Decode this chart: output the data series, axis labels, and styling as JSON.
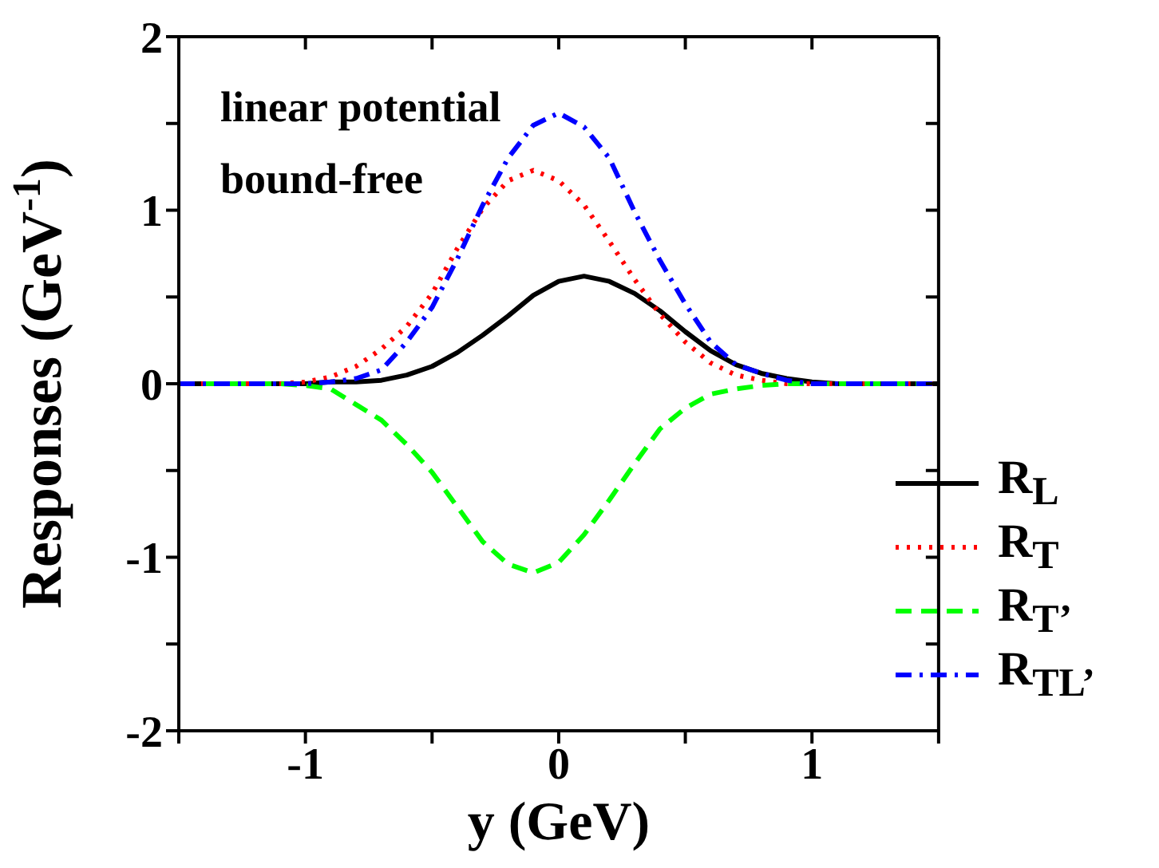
{
  "chart_data": {
    "type": "line",
    "xlabel": "y (GeV)",
    "ylabel": "Responses (GeV$^{-1}$)",
    "annotations": [
      "linear potential",
      "bound-free"
    ],
    "x": [
      -1.5,
      -1.4,
      -1.3,
      -1.2,
      -1.1,
      -1.0,
      -0.9,
      -0.8,
      -0.7,
      -0.6,
      -0.5,
      -0.4,
      -0.3,
      -0.2,
      -0.1,
      0,
      0.1,
      0.2,
      0.3,
      0.4,
      0.5,
      0.6,
      0.7,
      0.8,
      0.9,
      1.0,
      1.1,
      1.2,
      1.3,
      1.4,
      1.5
    ],
    "series": [
      {
        "name": "R$_{L}$",
        "color": "#000000",
        "line_style": "solid",
        "values": [
          0,
          0,
          0,
          0,
          0,
          0,
          0.01,
          0.01,
          0.02,
          0.05,
          0.1,
          0.18,
          0.28,
          0.39,
          0.51,
          0.59,
          0.62,
          0.59,
          0.52,
          0.42,
          0.3,
          0.19,
          0.11,
          0.06,
          0.03,
          0.01,
          0,
          0,
          0,
          0,
          0
        ]
      },
      {
        "name": "R$_{T}$",
        "color": "#ff0000",
        "line_style": "dotted",
        "values": [
          0,
          0,
          0,
          0,
          0,
          0.01,
          0.04,
          0.1,
          0.2,
          0.33,
          0.52,
          0.78,
          1.01,
          1.17,
          1.23,
          1.17,
          1.03,
          0.82,
          0.6,
          0.4,
          0.24,
          0.12,
          0.05,
          0.02,
          0,
          0,
          0,
          0,
          0,
          0,
          0
        ]
      },
      {
        "name": "R$_{T’}$",
        "color": "#00ff00",
        "line_style": "dashed",
        "values": [
          0,
          0,
          0,
          0,
          0,
          -0.01,
          -0.03,
          -0.12,
          -0.21,
          -0.35,
          -0.51,
          -0.71,
          -0.91,
          -1.04,
          -1.09,
          -1.03,
          -0.87,
          -0.67,
          -0.46,
          -0.26,
          -0.14,
          -0.06,
          -0.03,
          -0.01,
          0,
          0,
          0,
          0,
          0,
          0,
          0
        ]
      },
      {
        "name": "R$_{TL’}$",
        "color": "#0000ff",
        "line_style": "dashdot",
        "values": [
          0,
          0,
          0,
          0,
          0,
          0,
          0.01,
          0.03,
          0.08,
          0.24,
          0.44,
          0.72,
          1.03,
          1.3,
          1.49,
          1.56,
          1.48,
          1.3,
          0.99,
          0.71,
          0.46,
          0.24,
          0.11,
          0.06,
          0.02,
          0,
          0,
          0,
          0,
          0,
          0
        ]
      }
    ],
    "xlim": [
      -1.5,
      1.5
    ],
    "xticks": [
      {
        "value": -1.5,
        "label": null
      },
      -1,
      {
        "value": -0.5,
        "label": null
      },
      0,
      {
        "value": 0.5,
        "label": null
      },
      1,
      {
        "value": 1.5,
        "label": null
      }
    ],
    "ylim": [
      -2,
      2
    ],
    "yticks": [
      -2,
      {
        "value": -1.5,
        "label": null
      },
      -1,
      {
        "value": -0.5,
        "label": null
      },
      0,
      {
        "value": 0.5,
        "label": null
      },
      1,
      {
        "value": 1.5,
        "label": null
      },
      2
    ],
    "legend": "bottom right",
    "marker": "none"
  }
}
